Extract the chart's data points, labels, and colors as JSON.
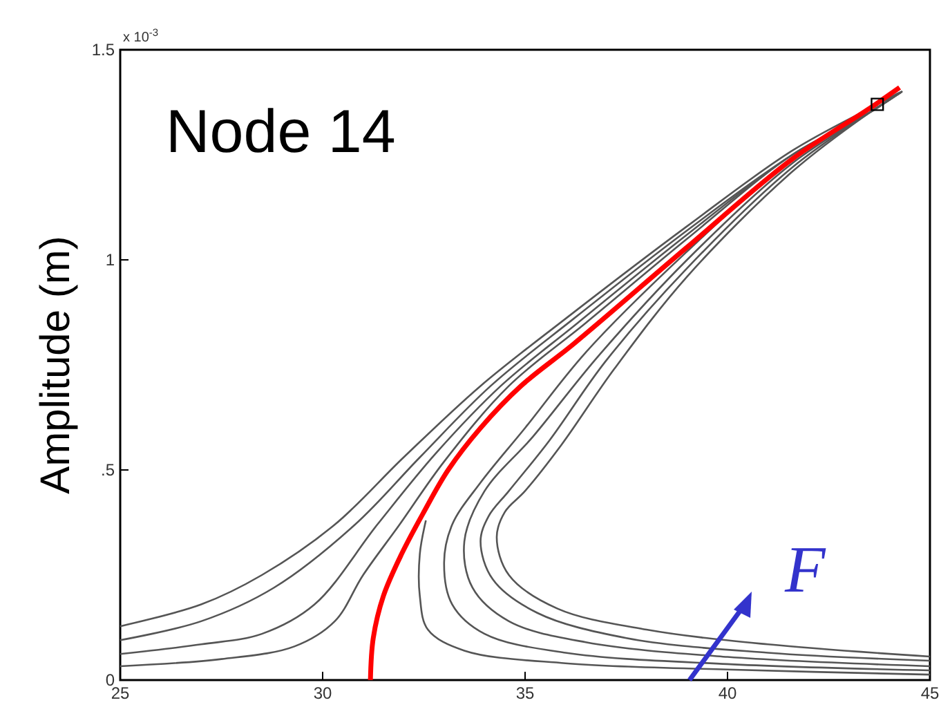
{
  "chart_data": {
    "type": "line",
    "ylabel": "Amplitude (m)",
    "xlim": [
      25,
      45
    ],
    "xticks": [
      25,
      30,
      35,
      40,
      45
    ],
    "ylim": [
      0,
      1.5
    ],
    "yticks": [
      0,
      {
        "value": 0.5,
        "label": ".5"
      },
      1,
      1.5
    ],
    "grid": false,
    "marker": "none",
    "line_style": "solid",
    "annotations": [
      "Node 14",
      "x 10$^{-3}$",
      "F"
    ],
    "series": [
      {
        "color": "#555555",
        "x": [
          25,
          27,
          28.5,
          30.3,
          32,
          33.9,
          36,
          39,
          41.6,
          43.5,
          44.3,
          43.5,
          41.6,
          39,
          37.2,
          35.9,
          35.0,
          34.5,
          34.3,
          34.6,
          35.8,
          38,
          41,
          45
        ],
        "values": [
          0.128,
          0.18,
          0.25,
          0.37,
          0.53,
          0.7,
          0.86,
          1.08,
          1.26,
          1.36,
          1.4,
          1.35,
          1.21,
          0.96,
          0.74,
          0.56,
          0.45,
          0.4,
          0.34,
          0.25,
          0.17,
          0.12,
          0.085,
          0.056
        ]
      },
      {
        "color": "#555555",
        "x": [
          25,
          27,
          28.8,
          30.8,
          32.4,
          34.15,
          36.2,
          39,
          41.6,
          43.5,
          44.3,
          43.5,
          41.6,
          39,
          37,
          35.6,
          34.6,
          34.1,
          33.9,
          34.2,
          35.3,
          37.5,
          41,
          45
        ],
        "values": [
          0.095,
          0.14,
          0.22,
          0.37,
          0.53,
          0.7,
          0.86,
          1.07,
          1.25,
          1.35,
          1.4,
          1.35,
          1.22,
          0.98,
          0.76,
          0.57,
          0.45,
          0.39,
          0.33,
          0.24,
          0.16,
          0.1,
          0.065,
          0.046
        ]
      },
      {
        "color": "#555555",
        "x": [
          25,
          27,
          28.5,
          29.8,
          31.35,
          32.8,
          34.4,
          36.3,
          39,
          41.6,
          43.5,
          44.3,
          43.5,
          41.6,
          39,
          36.8,
          35.2,
          34.0,
          33.5,
          33.7,
          34.6,
          36.5,
          40,
          45
        ],
        "values": [
          0.062,
          0.085,
          0.11,
          0.18,
          0.37,
          0.54,
          0.7,
          0.85,
          1.06,
          1.25,
          1.35,
          1.4,
          1.35,
          1.23,
          1.0,
          0.77,
          0.58,
          0.45,
          0.33,
          0.22,
          0.14,
          0.09,
          0.055,
          0.033
        ]
      },
      {
        "color": "#555555",
        "x": [
          25,
          27.5,
          29.3,
          30.3,
          31.0,
          31.9,
          33.0,
          34.6,
          36.5,
          39,
          41.6,
          43.5,
          44.3,
          43.5,
          41.6,
          39,
          36.5,
          35,
          33.9,
          33.2,
          33.0,
          33.2,
          34.0,
          36,
          40,
          45
        ],
        "values": [
          0.033,
          0.05,
          0.08,
          0.14,
          0.25,
          0.37,
          0.52,
          0.7,
          0.85,
          1.05,
          1.25,
          1.35,
          1.4,
          1.35,
          1.24,
          1.02,
          0.78,
          0.6,
          0.47,
          0.37,
          0.28,
          0.18,
          0.11,
          0.065,
          0.038,
          0.023
        ]
      },
      {
        "color": "#555555",
        "x": [
          32.55,
          32.4,
          32.4,
          32.6,
          33.5,
          36,
          40,
          45
        ],
        "values": [
          0.38,
          0.3,
          0.2,
          0.12,
          0.07,
          0.04,
          0.025,
          0.013
        ]
      },
      {
        "color": "#ff0000",
        "x": [
          31.18,
          31.25,
          31.5,
          31.95,
          32.5,
          33.1,
          33.9,
          34.9,
          36.2,
          39.0,
          41.6,
          43.5,
          44.25
        ],
        "values": [
          0,
          0.1,
          0.2,
          0.3,
          0.4,
          0.5,
          0.6,
          0.7,
          0.8,
          1.03,
          1.24,
          1.36,
          1.41
        ]
      },
      {
        "type": "scatter",
        "marker": "square",
        "color": "#000000",
        "x": [
          43.7
        ],
        "values": [
          1.37
        ]
      }
    ]
  }
}
